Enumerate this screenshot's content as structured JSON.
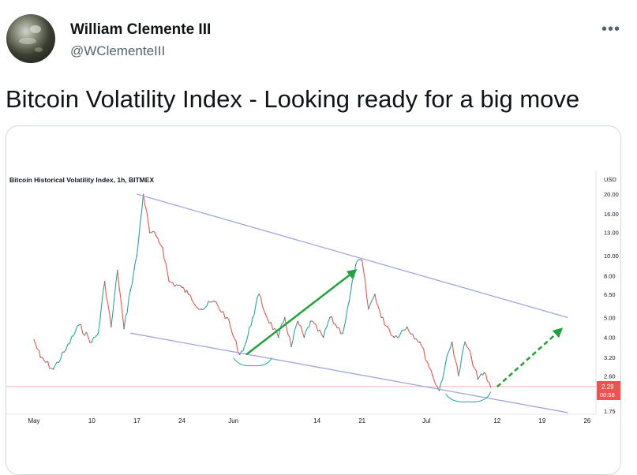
{
  "author": {
    "name": "William Clemente III",
    "handle": "@WClementeIII"
  },
  "more_icon": "more-horizontal-icon",
  "tweet": {
    "text": "Bitcoin Volatility Index - Looking ready for a big move"
  },
  "colors": {
    "up_candle": "#26a69a",
    "down_candle": "#ef5350",
    "trendline": "#9ea7e0",
    "green_arrow": "#1fa33a",
    "current_price_bg": "#ef5350"
  },
  "chart_data": {
    "type": "line",
    "title": "Bitcoin Historical Volatility Index, 1h, BITMEX",
    "currency": "USD",
    "y_scale": "log",
    "x_ticks": [
      "May",
      "10",
      "17",
      "24",
      "Jun",
      "14",
      "21",
      "Jul",
      "12",
      "19",
      "26"
    ],
    "y_ticks": [
      "20.00",
      "16.00",
      "13.00",
      "10.00",
      "8.00",
      "6.50",
      "5.00",
      "4.00",
      "3.20",
      "2.60",
      "1.75"
    ],
    "current_value": "2.29",
    "countdown": "00:58",
    "series": [
      {
        "x": [
          "May 1",
          "May 2",
          "May 4",
          "May 6",
          "May 8",
          "May 10",
          "May 11",
          "May 12",
          "May 13",
          "May 14",
          "May 15",
          "May 16",
          "May 17",
          "May 18",
          "May 19",
          "May 20",
          "May 21",
          "May 22",
          "May 24",
          "May 25",
          "May 27",
          "May 29",
          "May 31",
          "Jun 2",
          "Jun 3",
          "Jun 4",
          "Jun 5",
          "Jun 6",
          "Jun 8",
          "Jun 9",
          "Jun 10",
          "Jun 11",
          "Jun 12",
          "Jun 13",
          "Jun 15",
          "Jun 16",
          "Jun 18",
          "Jun 19",
          "Jun 20",
          "Jun 21",
          "Jun 22",
          "Jun 23",
          "Jun 24",
          "Jun 25",
          "Jun 26",
          "Jun 28",
          "Jun 30",
          "Jul 2",
          "Jul 3",
          "Jul 4",
          "Jul 5",
          "Jul 6",
          "Jul 7",
          "Jul 8",
          "Jul 9",
          "Jul 10",
          "Jul 11"
        ],
        "values": [
          3.9,
          3.2,
          2.8,
          3.5,
          4.6,
          3.8,
          4.2,
          7.5,
          4.5,
          8.5,
          4.4,
          6.8,
          10.0,
          20.0,
          13.0,
          12.5,
          11.0,
          7.5,
          7.0,
          6.5,
          5.5,
          6.0,
          5.0,
          3.3,
          3.8,
          5.0,
          6.5,
          5.2,
          4.0,
          5.0,
          3.6,
          4.8,
          4.0,
          4.8,
          4.0,
          5.0,
          4.2,
          6.0,
          9.0,
          9.5,
          5.5,
          6.5,
          5.0,
          4.5,
          4.0,
          4.5,
          3.8,
          2.6,
          2.2,
          3.0,
          3.8,
          2.6,
          3.8,
          3.2,
          2.5,
          2.7,
          2.29
        ]
      }
    ],
    "annotations": [
      {
        "type": "trendline",
        "from": [
          "May 17",
          20.0
        ],
        "to": [
          "Jul 23",
          5.0
        ]
      },
      {
        "type": "trendline",
        "from": [
          "May 16",
          4.2
        ],
        "to": [
          "Jul 23",
          1.72
        ]
      },
      {
        "type": "arrow",
        "style": "solid",
        "from": [
          "Jun 3",
          3.3
        ],
        "to": [
          "Jun 20",
          8.5
        ]
      },
      {
        "type": "arrow",
        "style": "dashed",
        "from": [
          "Jul 12",
          2.3
        ],
        "to": [
          "Jul 22",
          4.4
        ]
      }
    ]
  }
}
